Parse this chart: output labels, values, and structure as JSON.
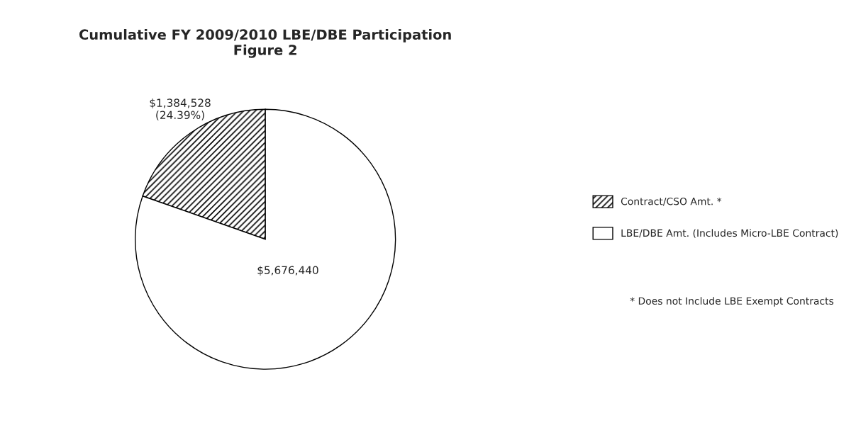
{
  "chart_data": {
    "type": "pie",
    "title": "Cumulative FY 2009/2010 LBE/DBE Participation\nFigure 2",
    "categories": [
      "Contract/CSO Amt. *",
      "LBE/DBE Amt. (Includes Micro-LBE Contract)"
    ],
    "values": [
      1384528,
      5676440
    ],
    "value_labels": [
      "$1,384,528\n(24.39%)",
      "$5,676,440"
    ],
    "colors": [
      "#000000",
      "#ffffff"
    ],
    "legend": "right",
    "annotations": [
      "* Does not Include LBE Exempt Contracts"
    ]
  }
}
